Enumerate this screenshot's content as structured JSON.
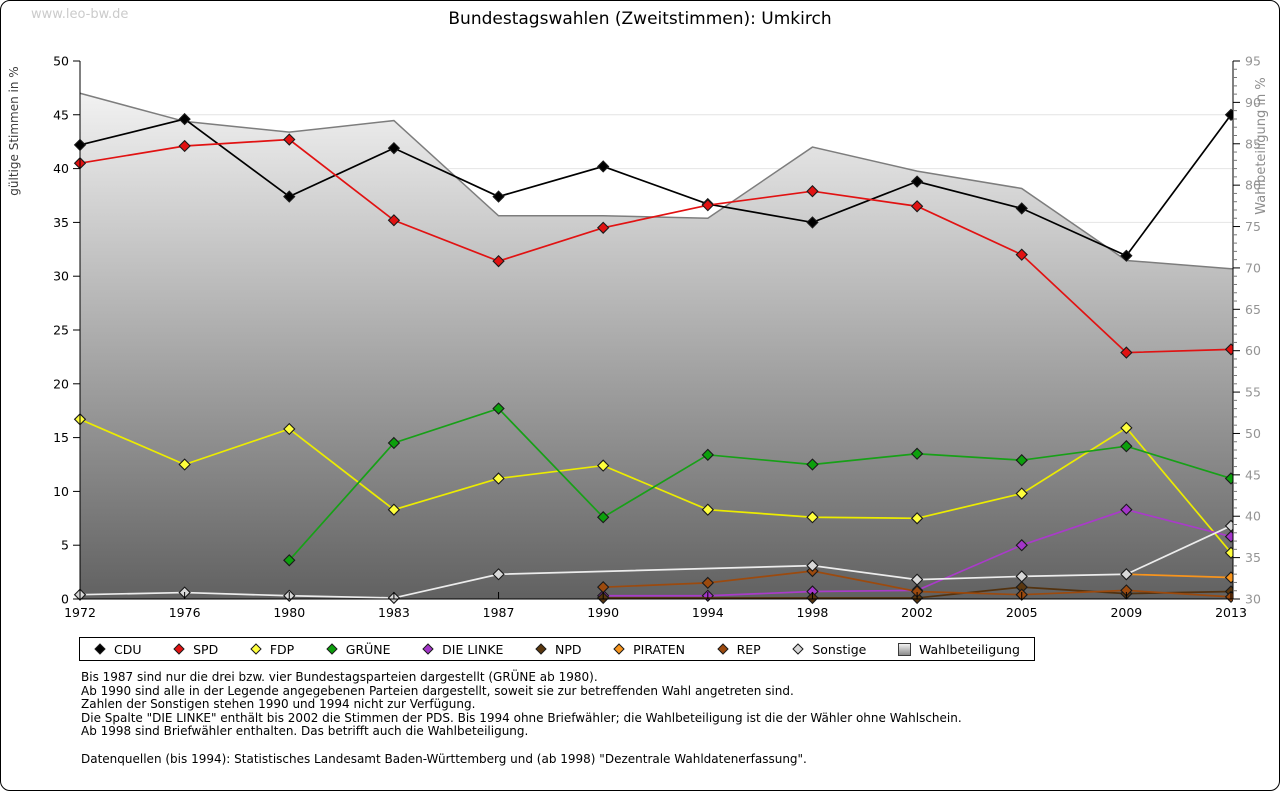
{
  "watermark": "www.leo-bw.de",
  "title": "Bundestagswahlen (Zweitstimmen): Umkirch",
  "chart_data": {
    "type": "line",
    "categories": [
      "1972",
      "1976",
      "1980",
      "1983",
      "1987",
      "1990",
      "1994",
      "1998",
      "2002",
      "2005",
      "2009",
      "2013"
    ],
    "series": [
      {
        "id": "cdu",
        "name": "CDU",
        "color": "#000000",
        "marker_fill": "#000000",
        "values": [
          42.2,
          44.6,
          37.4,
          41.9,
          37.4,
          40.2,
          36.7,
          35.0,
          38.8,
          36.3,
          31.9,
          45.0
        ]
      },
      {
        "id": "spd",
        "name": "SPD",
        "color": "#e11212",
        "marker_fill": "#e11212",
        "values": [
          40.5,
          42.1,
          42.7,
          35.2,
          31.4,
          34.5,
          36.6,
          37.9,
          36.5,
          32.0,
          22.9,
          23.2
        ]
      },
      {
        "id": "fdp",
        "name": "FDP",
        "color": "#ecec00",
        "marker_fill": "#ffff3c",
        "values": [
          16.7,
          12.5,
          15.8,
          8.3,
          11.2,
          12.4,
          8.3,
          7.6,
          7.5,
          9.8,
          15.9,
          4.3
        ]
      },
      {
        "id": "gruene",
        "name": "GRÜNE",
        "color": "#17a017",
        "marker_fill": "#0ca00c",
        "values": [
          null,
          null,
          3.6,
          14.5,
          17.7,
          7.6,
          13.4,
          12.5,
          13.5,
          12.9,
          14.2,
          11.2
        ]
      },
      {
        "id": "die-linke",
        "name": "DIE LINKE",
        "color": "#a93bc9",
        "marker_fill": "#a335c9",
        "values": [
          null,
          null,
          null,
          null,
          null,
          0.3,
          0.3,
          0.7,
          0.8,
          5.0,
          8.3,
          5.8
        ]
      },
      {
        "id": "npd",
        "name": "NPD",
        "color": "#53320f",
        "marker_fill": "#5a370f",
        "values": [
          null,
          null,
          null,
          null,
          null,
          0.1,
          null,
          0.1,
          0.1,
          1.1,
          0.5,
          0.7
        ]
      },
      {
        "id": "piraten",
        "name": "PIRATEN",
        "color": "#f7941d",
        "marker_fill": "#f7941d",
        "values": [
          null,
          null,
          null,
          null,
          null,
          null,
          null,
          null,
          null,
          null,
          2.3,
          2.0
        ]
      },
      {
        "id": "rep",
        "name": "REP",
        "color": "#9c4a0e",
        "marker_fill": "#9c4a0e",
        "values": [
          null,
          null,
          null,
          null,
          null,
          1.1,
          1.5,
          2.6,
          0.7,
          0.4,
          0.8,
          0.2
        ]
      },
      {
        "id": "sonstige",
        "name": "Sonstige",
        "color": "#ececec",
        "marker_fill": "#d8d8d8",
        "values": [
          0.4,
          0.6,
          0.3,
          0.1,
          2.3,
          null,
          null,
          3.1,
          1.8,
          2.1,
          2.3,
          6.8
        ]
      }
    ],
    "area_series": {
      "id": "wahlbeteiligung",
      "name": "Wahlbeteiligung",
      "axis": "right",
      "values": [
        91.1,
        87.7,
        86.4,
        87.8,
        76.3,
        76.3,
        76.0,
        84.6,
        81.7,
        79.6,
        70.9,
        69.9
      ],
      "fill_top": "#fbfbfb",
      "fill_bottom": "#616161",
      "stroke": "#7d7d7d"
    },
    "y_left": {
      "label": "gültige Stimmen in %",
      "min": 0,
      "max": 50,
      "tick_step": 5
    },
    "y_right": {
      "label": "Wahlbeteiligung in %",
      "min": 30,
      "max": 95,
      "tick_step": 5,
      "minor_tick_step": 1
    },
    "grid": true,
    "legend_position": "bottom"
  },
  "footnotes": [
    "Bis 1987 sind nur die drei bzw. vier Bundestagsparteien dargestellt (GRÜNE ab 1980).",
    "Ab 1990 sind alle in der Legende angegebenen Parteien dargestellt, soweit sie zur betreffenden Wahl angetreten sind.",
    "Zahlen der Sonstigen stehen 1990 und 1994 nicht zur Verfügung.",
    "Die Spalte \"DIE LINKE\" enthält bis 2002 die Stimmen der PDS. Bis 1994 ohne Briefwähler; die Wahlbeteiligung ist die der Wähler ohne Wahlschein.",
    "Ab 1998 sind Briefwähler enthalten. Das betrifft auch die Wahlbeteiligung.",
    "",
    "Datenquellen (bis 1994): Statistisches Landesamt Baden-Württemberg und (ab 1998) \"Dezentrale Wahldatenerfassung\"."
  ]
}
